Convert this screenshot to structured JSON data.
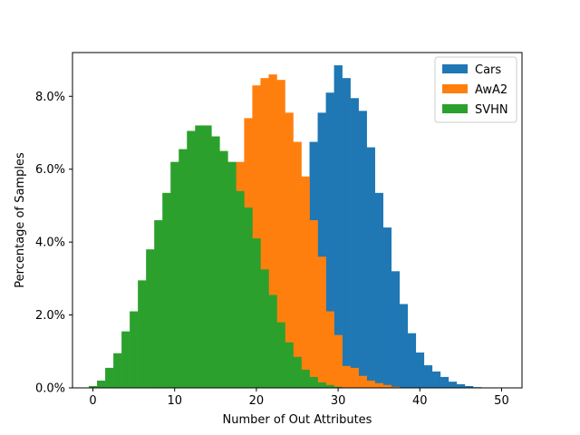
{
  "chart_data": {
    "type": "bar",
    "title": "",
    "xlabel": "Number of Out Attributes",
    "ylabel": "Percentage of Samples",
    "xlim": [
      -2.5,
      52.5
    ],
    "ylim": [
      0,
      9.2
    ],
    "xticks": [
      0,
      10,
      20,
      30,
      40,
      50
    ],
    "yticks": [
      0,
      2,
      4,
      6,
      8
    ],
    "ytick_labels": [
      "0.0%",
      "2.0%",
      "4.0%",
      "6.0%",
      "8.0%"
    ],
    "grid": false,
    "legend_position": "top-right",
    "bin_width": 1,
    "series": [
      {
        "name": "Cars",
        "color": "#1f77b4",
        "bins": [
          26,
          27,
          28,
          29,
          30,
          31,
          32,
          33,
          34,
          35,
          36,
          37,
          38,
          39,
          40,
          41,
          42,
          43,
          44,
          45,
          46,
          47
        ],
        "values": [
          5.4,
          6.75,
          7.55,
          8.1,
          8.85,
          8.5,
          7.95,
          7.6,
          6.6,
          5.35,
          4.4,
          3.2,
          2.3,
          1.5,
          0.97,
          0.62,
          0.45,
          0.3,
          0.17,
          0.1,
          0.05,
          0.02
        ]
      },
      {
        "name": "AwA2",
        "color": "#ff7f0e",
        "bins": [
          16,
          17,
          18,
          19,
          20,
          21,
          22,
          23,
          24,
          25,
          26,
          27,
          28,
          29,
          30,
          31,
          32,
          33,
          34,
          35,
          36,
          37
        ],
        "values": [
          4.8,
          5.45,
          6.2,
          7.4,
          8.3,
          8.5,
          8.6,
          8.45,
          7.55,
          6.75,
          5.8,
          4.6,
          3.6,
          2.1,
          1.45,
          0.6,
          0.55,
          0.33,
          0.2,
          0.13,
          0.08,
          0.03
        ]
      },
      {
        "name": "SVHN",
        "color": "#2ca02c",
        "bins": [
          0,
          1,
          2,
          3,
          4,
          5,
          6,
          7,
          8,
          9,
          10,
          11,
          12,
          13,
          14,
          15,
          16,
          17,
          18,
          19,
          20,
          21,
          22,
          23,
          24,
          25,
          26,
          27,
          28,
          29,
          30
        ],
        "values": [
          0.05,
          0.2,
          0.55,
          0.95,
          1.55,
          2.1,
          2.95,
          3.8,
          4.6,
          5.35,
          6.2,
          6.55,
          7.05,
          7.2,
          7.2,
          6.9,
          6.5,
          6.2,
          5.4,
          4.95,
          4.1,
          3.25,
          2.55,
          1.8,
          1.25,
          0.85,
          0.5,
          0.3,
          0.15,
          0.08,
          0.03
        ]
      }
    ]
  }
}
